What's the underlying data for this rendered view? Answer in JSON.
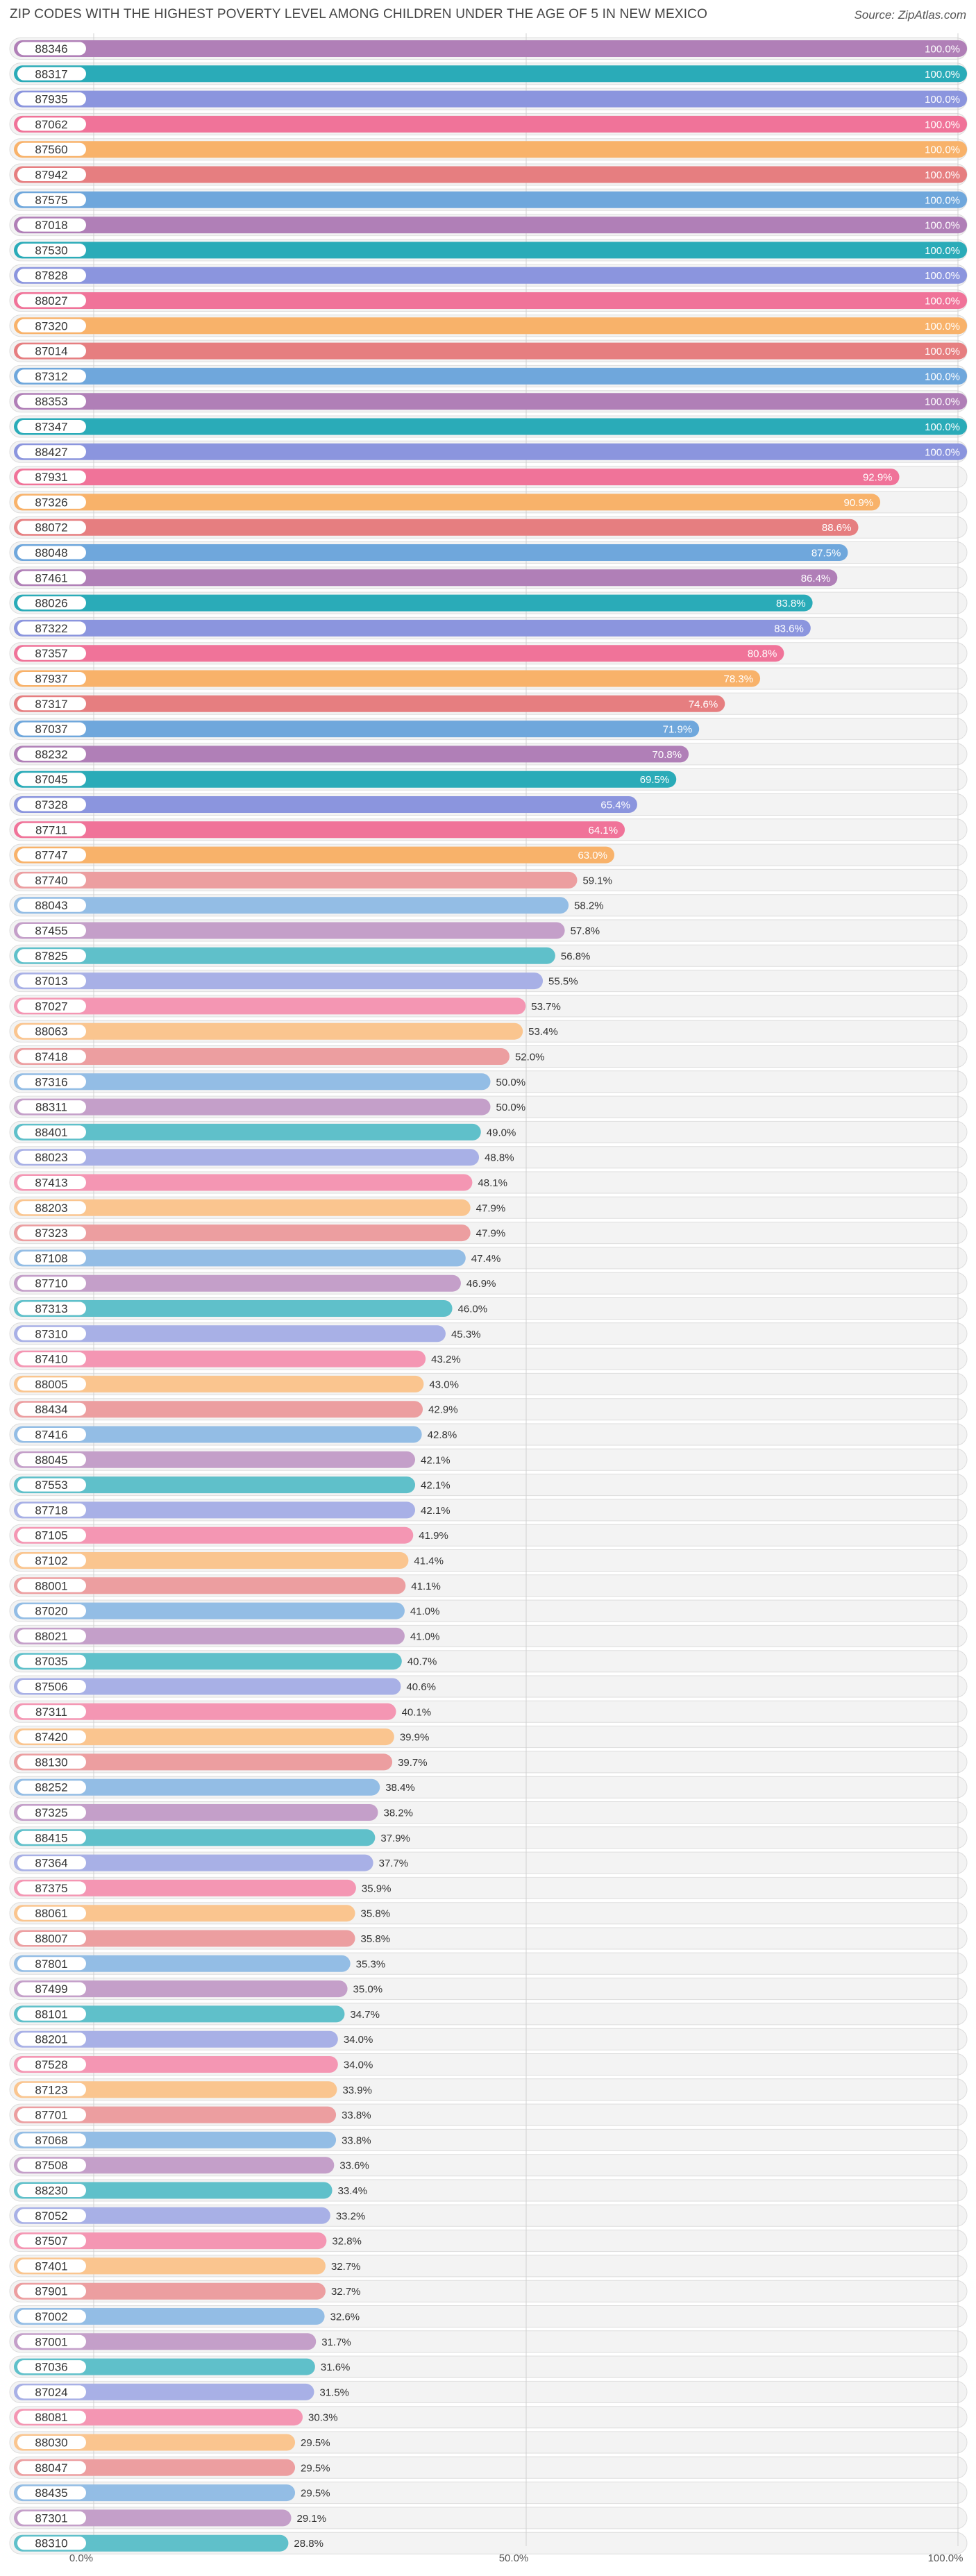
{
  "chart_data": {
    "type": "bar",
    "orientation": "horizontal",
    "title": "ZIP CODES WITH THE HIGHEST POVERTY LEVEL AMONG CHILDREN UNDER THE AGE OF 5 IN NEW MEXICO",
    "source": "Source: ZipAtlas.com",
    "xlim": [
      0,
      100
    ],
    "grid": true,
    "x_ticks": [
      {
        "value": 0,
        "label": "0.0%"
      },
      {
        "value": 50,
        "label": "50.0%"
      },
      {
        "value": 100,
        "label": "100.0%"
      }
    ],
    "palette": [
      "#b07fb7",
      "#2aabb8",
      "#8b95de",
      "#f07399",
      "#f8b26a",
      "#e67e80",
      "#6fa7dc"
    ],
    "categories": [
      "88346",
      "88317",
      "87935",
      "87062",
      "87560",
      "87942",
      "87575",
      "87018",
      "87530",
      "87828",
      "88027",
      "87320",
      "87014",
      "87312",
      "88353",
      "87347",
      "88427",
      "87931",
      "87326",
      "88072",
      "88048",
      "87461",
      "88026",
      "87322",
      "87357",
      "87937",
      "87317",
      "87037",
      "88232",
      "87045",
      "87328",
      "87711",
      "87747",
      "87740",
      "88043",
      "87455",
      "87825",
      "87013",
      "87027",
      "88063",
      "87418",
      "87316",
      "88311",
      "88401",
      "88023",
      "87413",
      "88203",
      "87323",
      "87108",
      "87710",
      "87313",
      "87310",
      "87410",
      "88005",
      "88434",
      "87416",
      "88045",
      "87553",
      "87718",
      "87105",
      "87102",
      "88001",
      "87020",
      "88021",
      "87035",
      "87506",
      "87311",
      "87420",
      "88130",
      "88252",
      "87325",
      "88415",
      "87364",
      "87375",
      "88061",
      "88007",
      "87801",
      "87499",
      "88101",
      "88201",
      "87528",
      "87123",
      "87701",
      "87068",
      "87508",
      "88230",
      "87052",
      "87507",
      "87401",
      "87901",
      "87002",
      "87001",
      "87036",
      "87024",
      "88081",
      "88030",
      "88047",
      "88435",
      "87301",
      "88310"
    ],
    "values": [
      100.0,
      100.0,
      100.0,
      100.0,
      100.0,
      100.0,
      100.0,
      100.0,
      100.0,
      100.0,
      100.0,
      100.0,
      100.0,
      100.0,
      100.0,
      100.0,
      100.0,
      92.9,
      90.9,
      88.6,
      87.5,
      86.4,
      83.8,
      83.6,
      80.8,
      78.3,
      74.6,
      71.9,
      70.8,
      69.5,
      65.4,
      64.1,
      63.0,
      59.1,
      58.2,
      57.8,
      56.8,
      55.5,
      53.7,
      53.4,
      52.0,
      50.0,
      50.0,
      49.0,
      48.8,
      48.1,
      47.9,
      47.9,
      47.4,
      46.9,
      46.0,
      45.3,
      43.2,
      43.0,
      42.9,
      42.8,
      42.1,
      42.1,
      42.1,
      41.9,
      41.4,
      41.1,
      41.0,
      41.0,
      40.7,
      40.6,
      40.1,
      39.9,
      39.7,
      38.4,
      38.2,
      37.9,
      37.7,
      35.9,
      35.8,
      35.8,
      35.3,
      35.0,
      34.7,
      34.0,
      34.0,
      33.9,
      33.8,
      33.8,
      33.6,
      33.4,
      33.2,
      32.8,
      32.7,
      32.7,
      32.6,
      31.7,
      31.6,
      31.5,
      30.3,
      29.5,
      29.5,
      29.5,
      29.1,
      28.8
    ],
    "value_labels": [
      "100.0%",
      "100.0%",
      "100.0%",
      "100.0%",
      "100.0%",
      "100.0%",
      "100.0%",
      "100.0%",
      "100.0%",
      "100.0%",
      "100.0%",
      "100.0%",
      "100.0%",
      "100.0%",
      "100.0%",
      "100.0%",
      "100.0%",
      "92.9%",
      "90.9%",
      "88.6%",
      "87.5%",
      "86.4%",
      "83.8%",
      "83.6%",
      "80.8%",
      "78.3%",
      "74.6%",
      "71.9%",
      "70.8%",
      "69.5%",
      "65.4%",
      "64.1%",
      "63.0%",
      "59.1%",
      "58.2%",
      "57.8%",
      "56.8%",
      "55.5%",
      "53.7%",
      "53.4%",
      "52.0%",
      "50.0%",
      "50.0%",
      "49.0%",
      "48.8%",
      "48.1%",
      "47.9%",
      "47.9%",
      "47.4%",
      "46.9%",
      "46.0%",
      "45.3%",
      "43.2%",
      "43.0%",
      "42.9%",
      "42.8%",
      "42.1%",
      "42.1%",
      "42.1%",
      "41.9%",
      "41.4%",
      "41.1%",
      "41.0%",
      "41.0%",
      "40.7%",
      "40.6%",
      "40.1%",
      "39.9%",
      "39.7%",
      "38.4%",
      "38.2%",
      "37.9%",
      "37.7%",
      "35.9%",
      "35.8%",
      "35.8%",
      "35.3%",
      "35.0%",
      "34.7%",
      "34.0%",
      "34.0%",
      "33.9%",
      "33.8%",
      "33.8%",
      "33.6%",
      "33.4%",
      "33.2%",
      "32.8%",
      "32.7%",
      "32.7%",
      "32.6%",
      "31.7%",
      "31.6%",
      "31.5%",
      "30.3%",
      "29.5%",
      "29.5%",
      "29.5%",
      "29.1%",
      "28.8%"
    ]
  }
}
